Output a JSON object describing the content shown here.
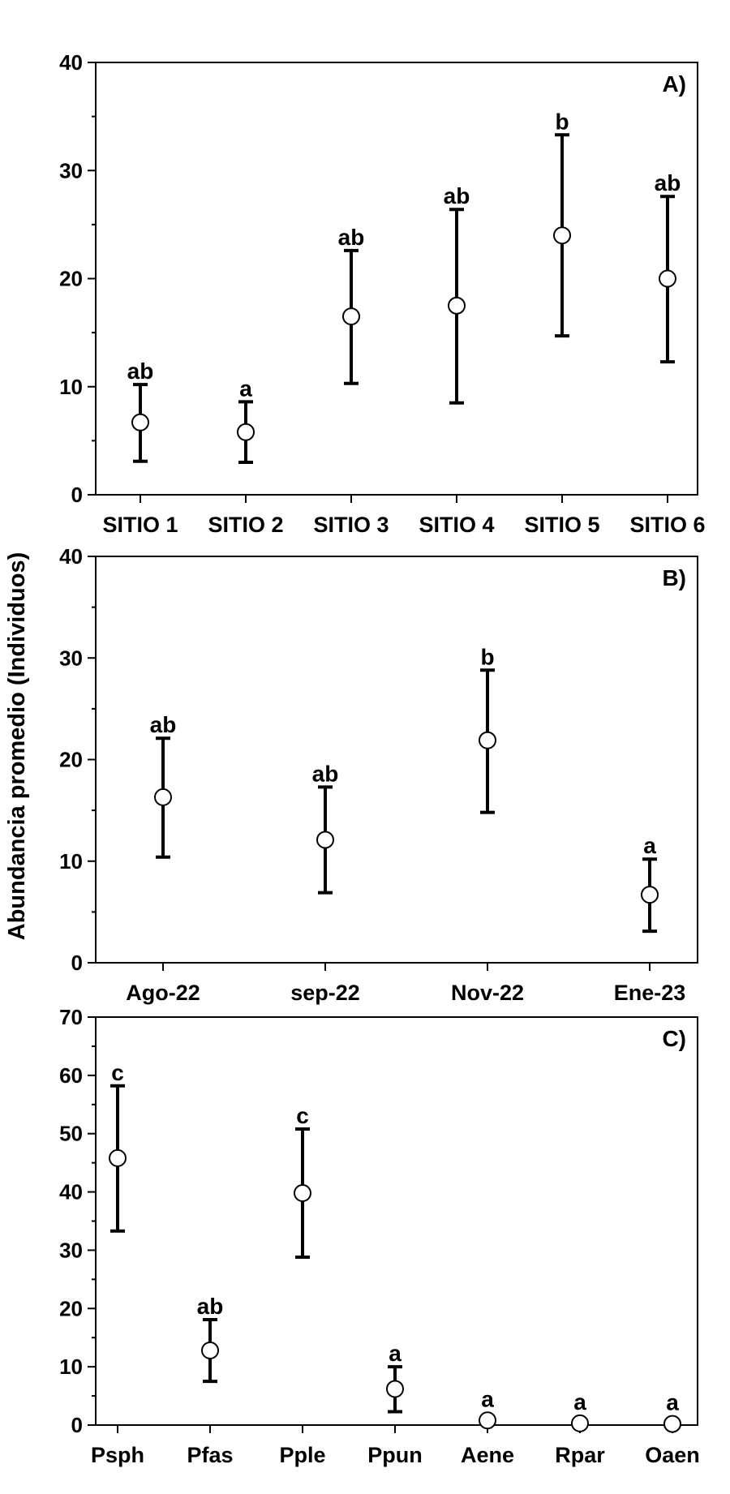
{
  "ylabel": "Abundancia promedio (Individuos)",
  "chart_data": [
    {
      "type": "scatter",
      "panel_label": "A)",
      "categories": [
        "SITIO 1",
        "SITIO 2",
        "SITIO 3",
        "SITIO 4",
        "SITIO 5",
        "SITIO 6"
      ],
      "values": [
        6.7,
        5.8,
        16.5,
        17.5,
        24.0,
        20.0
      ],
      "err_lower": [
        3.1,
        3.0,
        10.3,
        8.5,
        14.7,
        12.3
      ],
      "err_upper": [
        10.2,
        8.6,
        22.6,
        26.4,
        33.3,
        27.6
      ],
      "significance": [
        "ab",
        "a",
        "ab",
        "ab",
        "b",
        "ab"
      ],
      "ylim": [
        0,
        40
      ],
      "yticks": [
        0,
        10,
        20,
        30,
        40
      ],
      "grid": false
    },
    {
      "type": "scatter",
      "panel_label": "B)",
      "categories": [
        "Ago-22",
        "sep-22",
        "Nov-22",
        "Ene-23"
      ],
      "values": [
        16.3,
        12.1,
        21.9,
        6.7
      ],
      "err_lower": [
        10.4,
        6.9,
        14.8,
        3.1
      ],
      "err_upper": [
        22.1,
        17.3,
        28.8,
        10.2
      ],
      "significance": [
        "ab",
        "ab",
        "b",
        "a"
      ],
      "ylim": [
        0,
        40
      ],
      "yticks": [
        0,
        10,
        20,
        30,
        40
      ],
      "grid": false
    },
    {
      "type": "scatter",
      "panel_label": "C)",
      "categories": [
        "Psph",
        "Pfas",
        "Pple",
        "Ppun",
        "Aene",
        "Rpar",
        "Oaen"
      ],
      "values": [
        45.8,
        12.8,
        39.8,
        6.2,
        0.8,
        0.3,
        0.2
      ],
      "err_lower": [
        33.3,
        7.5,
        28.8,
        2.3,
        null,
        null,
        null
      ],
      "err_upper": [
        58.2,
        18.1,
        50.8,
        10.0,
        null,
        null,
        null
      ],
      "significance": [
        "c",
        "ab",
        "c",
        "a",
        "a",
        "a",
        "a"
      ],
      "ylim": [
        0,
        70
      ],
      "yticks": [
        0,
        10,
        20,
        30,
        40,
        50,
        60,
        70
      ],
      "grid": false
    }
  ]
}
